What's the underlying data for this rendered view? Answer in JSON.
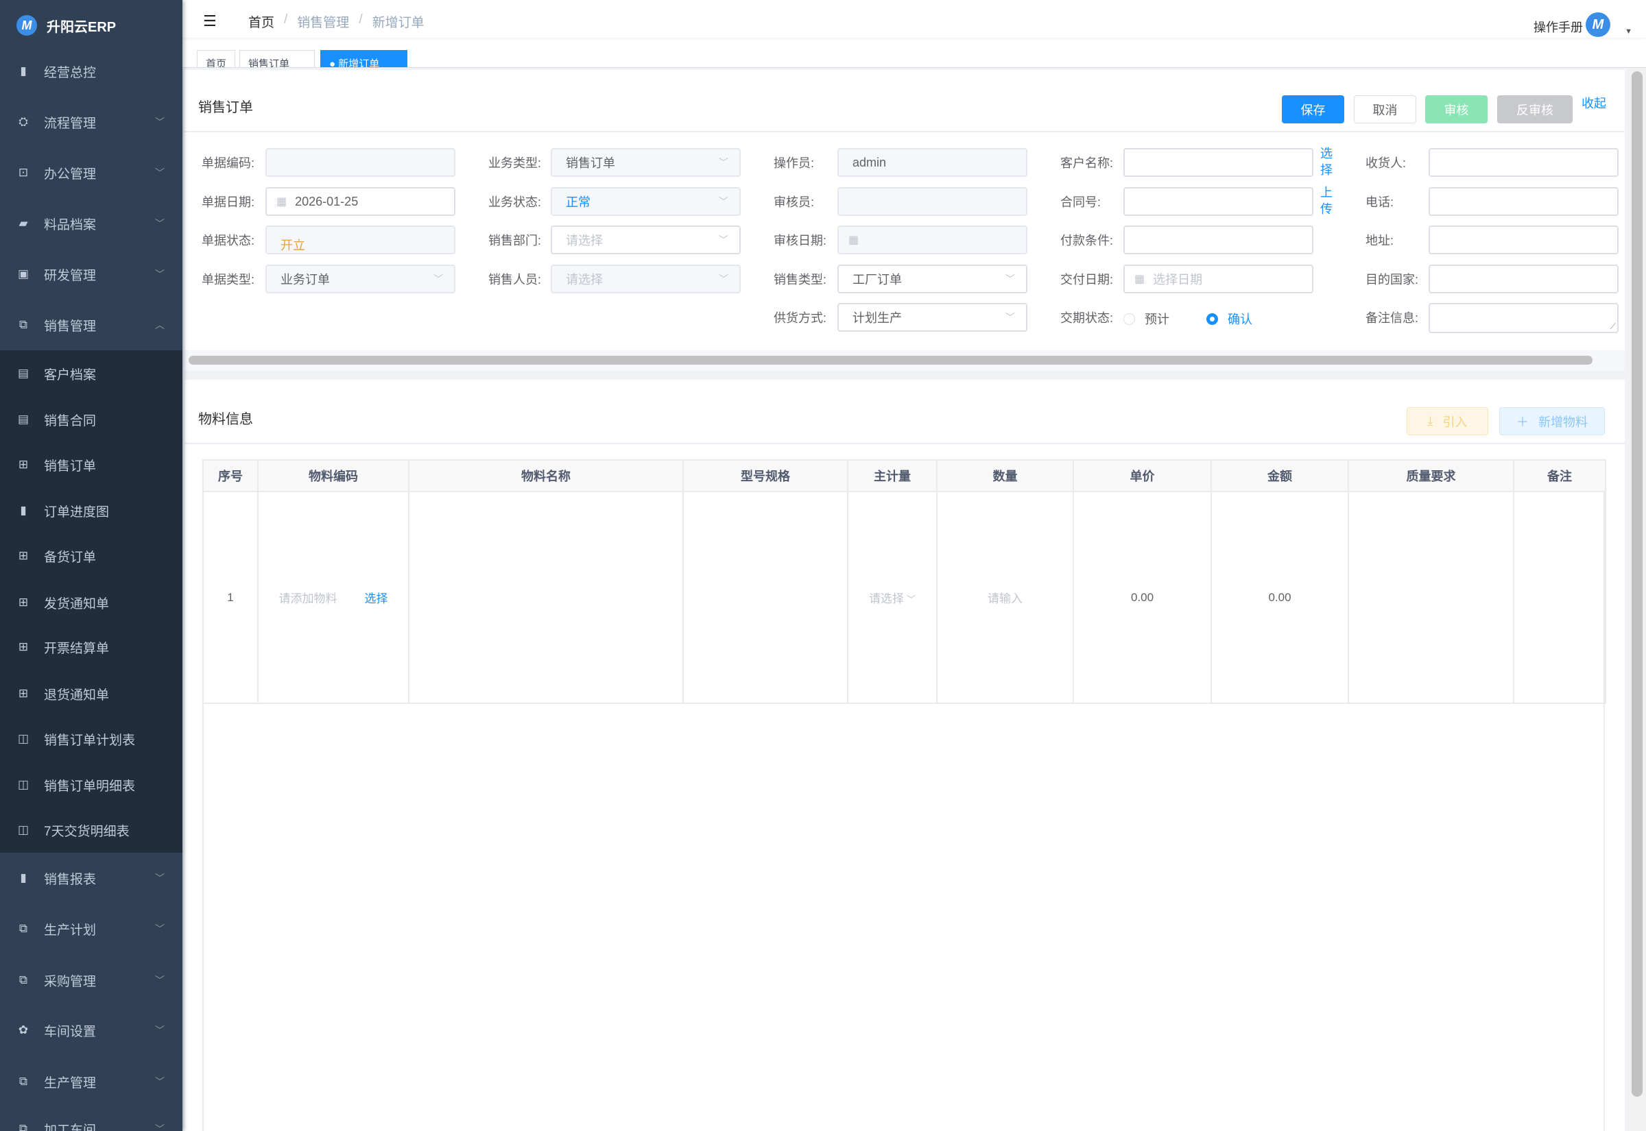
{
  "app": {
    "name": "升阳云ERP",
    "logo_letter": "M"
  },
  "sidebar": {
    "items": [
      {
        "label": "经营总控",
        "icon": "bar-chart-icon",
        "glyph": "▮",
        "chevron": false,
        "sub": false
      },
      {
        "label": "流程管理",
        "icon": "flow-icon",
        "glyph": "⛭",
        "chevron": true,
        "sub": false
      },
      {
        "label": "办公管理",
        "icon": "office-icon",
        "glyph": "⊡",
        "chevron": true,
        "sub": false
      },
      {
        "label": "料品档案",
        "icon": "book-icon",
        "glyph": "▰",
        "chevron": true,
        "sub": false
      },
      {
        "label": "研发管理",
        "icon": "research-icon",
        "glyph": "▣",
        "chevron": true,
        "sub": false
      },
      {
        "label": "销售管理",
        "icon": "documents-icon",
        "glyph": "⧉",
        "chevron": true,
        "expanded": true,
        "sub": false
      },
      {
        "label": "客户档案",
        "icon": "document-icon",
        "glyph": "▤",
        "sub": true
      },
      {
        "label": "销售合同",
        "icon": "document-icon",
        "glyph": "▤",
        "sub": true
      },
      {
        "label": "销售订单",
        "icon": "table-icon",
        "glyph": "⊞",
        "sub": true
      },
      {
        "label": "订单进度图",
        "icon": "bar-chart-icon",
        "glyph": "▮",
        "sub": true
      },
      {
        "label": "备货订单",
        "icon": "table-icon",
        "glyph": "⊞",
        "sub": true
      },
      {
        "label": "发货通知单",
        "icon": "table-icon",
        "glyph": "⊞",
        "sub": true
      },
      {
        "label": "开票结算单",
        "icon": "table-icon",
        "glyph": "⊞",
        "sub": true
      },
      {
        "label": "退货通知单",
        "icon": "table-icon",
        "glyph": "⊞",
        "sub": true
      },
      {
        "label": "销售订单计划表",
        "icon": "open-book-icon",
        "glyph": "◫",
        "sub": true
      },
      {
        "label": "销售订单明细表",
        "icon": "open-book-icon",
        "glyph": "◫",
        "sub": true
      },
      {
        "label": "7天交货明细表",
        "icon": "open-book-icon",
        "glyph": "◫",
        "sub": true
      },
      {
        "label": "销售报表",
        "icon": "bar-chart-icon",
        "glyph": "▮",
        "chevron": true,
        "sub": false
      },
      {
        "label": "生产计划",
        "icon": "documents-icon",
        "glyph": "⧉",
        "chevron": true,
        "sub": false
      },
      {
        "label": "采购管理",
        "icon": "documents-icon",
        "glyph": "⧉",
        "chevron": true,
        "sub": false
      },
      {
        "label": "车间设置",
        "icon": "gear-icon",
        "glyph": "✿",
        "chevron": true,
        "sub": false
      },
      {
        "label": "生产管理",
        "icon": "documents-icon",
        "glyph": "⧉",
        "chevron": true,
        "sub": false
      },
      {
        "label": "加工车间",
        "icon": "documents-icon",
        "glyph": "⧉",
        "chevron": true,
        "sub": false
      }
    ]
  },
  "header": {
    "breadcrumb": [
      "首页",
      "销售管理",
      "新增订单"
    ],
    "manual": "操作手册"
  },
  "tabs": [
    {
      "label": "首页",
      "active": false
    },
    {
      "label": "销售订单",
      "active": false
    },
    {
      "label": "● 新增订单",
      "active": true
    }
  ],
  "order": {
    "title": "销售订单",
    "buttons": {
      "save": "保存",
      "cancel": "取消",
      "audit": "审核",
      "unaudit": "反审核",
      "collapse": "收起"
    },
    "columns": [
      [
        {
          "label": "单据编码:",
          "type": "input",
          "value": "",
          "disabled": true
        },
        {
          "label": "单据日期:",
          "type": "date",
          "value": "2026-01-25",
          "disabled": false
        },
        {
          "label": "单据状态:",
          "type": "input",
          "value": "开立",
          "disabled": true,
          "color": "#e6a23c"
        },
        {
          "label": "单据类型:",
          "type": "select",
          "value": "业务订单",
          "disabled": true
        }
      ],
      [
        {
          "label": "业务类型:",
          "type": "select",
          "value": "销售订单",
          "disabled": true
        },
        {
          "label": "业务状态:",
          "type": "select",
          "value": "正常",
          "disabled": true,
          "color": "#1890ff"
        },
        {
          "label": "销售部门:",
          "type": "select",
          "placeholder": "请选择",
          "disabled": false
        },
        {
          "label": "销售人员:",
          "type": "select",
          "placeholder": "请选择",
          "disabled": true
        }
      ],
      [
        {
          "label": "操作员:",
          "type": "input",
          "value": "admin",
          "disabled": true
        },
        {
          "label": "审核员:",
          "type": "input",
          "value": "",
          "disabled": true
        },
        {
          "label": "审核日期:",
          "type": "date",
          "value": "",
          "disabled": true
        },
        {
          "label": "销售类型:",
          "type": "select",
          "value": "工厂订单",
          "disabled": false
        },
        {
          "label": "供货方式:",
          "type": "select",
          "value": "计划生产",
          "disabled": false
        }
      ],
      [
        {
          "label": "客户名称:",
          "type": "input",
          "value": "",
          "disabled": false,
          "link": "选择"
        },
        {
          "label": "合同号:",
          "type": "input",
          "value": "",
          "disabled": false,
          "link": "上传"
        },
        {
          "label": "付款条件:",
          "type": "input",
          "value": "",
          "disabled": false
        },
        {
          "label": "交付日期:",
          "type": "date",
          "placeholder": "选择日期",
          "disabled": false
        },
        {
          "label": "交期状态:",
          "type": "radio",
          "options": [
            "预计",
            "确认"
          ],
          "selected": "确认"
        }
      ],
      [
        {
          "label": "收货人:",
          "type": "input",
          "value": "",
          "disabled": false
        },
        {
          "label": "电话:",
          "type": "input",
          "value": "",
          "disabled": false
        },
        {
          "label": "地址:",
          "type": "input",
          "value": "",
          "disabled": false
        },
        {
          "label": "目的国家:",
          "type": "input",
          "value": "",
          "disabled": false
        },
        {
          "label": "备注信息:",
          "type": "textarea",
          "value": "",
          "disabled": false
        }
      ]
    ]
  },
  "materials": {
    "title": "物料信息",
    "import_label": "引入",
    "add_label": "新增物料",
    "headers": [
      "序号",
      "物料编码",
      "物料名称",
      "型号规格",
      "主计量",
      "数量",
      "单价",
      "金额",
      "质量要求",
      "备注"
    ],
    "row": {
      "index": "1",
      "code_placeholder": "请添加物料",
      "code_link": "选择",
      "unit_placeholder": "请选择",
      "qty_placeholder": "请输入",
      "price": "0.00",
      "amount": "0.00"
    }
  },
  "colors": {
    "primary": "#1890ff",
    "sidebar": "#304156",
    "submenu": "#1f2d3d",
    "audit": "#8ae4b3",
    "warning": "#e6a23c"
  }
}
